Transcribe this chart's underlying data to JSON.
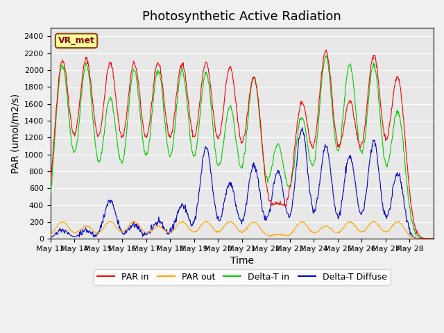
{
  "title": "Photosynthetic Active Radiation",
  "ylabel": "PAR (umol/m2/s)",
  "xlabel": "Time",
  "station_label": "VR_met",
  "ylim": [
    0,
    2500
  ],
  "yticks": [
    0,
    200,
    400,
    600,
    800,
    1000,
    1200,
    1400,
    1600,
    1800,
    2000,
    2200,
    2400
  ],
  "xtick_labels": [
    "May 13",
    "May 14",
    "May 15",
    "May 16",
    "May 17",
    "May 18",
    "May 19",
    "May 20",
    "May 21",
    "May 22",
    "May 23",
    "May 24",
    "May 25",
    "May 26",
    "May 27",
    "May 28"
  ],
  "colors": {
    "par_in": "#FF0000",
    "par_out": "#FFA500",
    "delta_t_in": "#00CC00",
    "delta_t_diffuse": "#0000CC"
  },
  "legend_labels": [
    "PAR in",
    "PAR out",
    "Delta-T in",
    "Delta-T Diffuse"
  ],
  "bg_color": "#E8E8E8",
  "title_fontsize": 13,
  "axis_fontsize": 10,
  "tick_fontsize": 8
}
